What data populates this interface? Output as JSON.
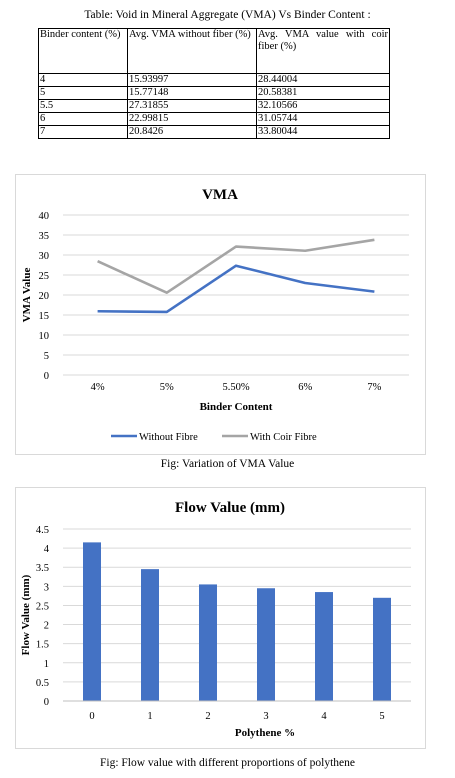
{
  "table": {
    "caption": "Table: Void in Mineral Aggregate (VMA) Vs Binder Content :",
    "headers": [
      "Binder content (%)",
      "Avg. VMA without fiber (%)",
      "Avg. VMA value with coir fiber (%)"
    ],
    "rows": [
      [
        "4",
        "15.93997",
        "28.44004"
      ],
      [
        "5",
        "15.77148",
        "20.58381"
      ],
      [
        "5.5",
        "27.31855",
        "32.10566"
      ],
      [
        "6",
        "22.99815",
        "31.05744"
      ],
      [
        "7",
        "20.8426",
        "33.80044"
      ]
    ]
  },
  "chart_data": [
    {
      "type": "line",
      "title": "VMA",
      "xlabel": "Binder Content",
      "ylabel": "VMA Value",
      "categories": [
        "4%",
        "5%",
        "5.50%",
        "6%",
        "7%"
      ],
      "ylim": [
        0,
        40
      ],
      "yticks": [
        "0",
        "5",
        "10",
        "15",
        "20",
        "25",
        "30",
        "35",
        "40"
      ],
      "grid": true,
      "legend_position": "bottom",
      "series": [
        {
          "name": "Without Fibre",
          "color": "#4472c4",
          "values": [
            15.94,
            15.77,
            27.32,
            23.0,
            20.84
          ]
        },
        {
          "name": "With Coir Fibre",
          "color": "#a5a5a5",
          "values": [
            28.44,
            20.58,
            32.11,
            31.06,
            33.8
          ]
        }
      ]
    },
    {
      "type": "bar",
      "title": "Flow Value (mm)",
      "xlabel": "Polythene %",
      "ylabel": "Flow Value (mm)",
      "categories": [
        "0",
        "1",
        "2",
        "3",
        "4",
        "5"
      ],
      "values": [
        4.15,
        3.45,
        3.05,
        2.95,
        2.85,
        2.7
      ],
      "ylim": [
        0,
        4.5
      ],
      "yticks": [
        "0",
        "0.5",
        "1",
        "1.5",
        "2",
        "2.5",
        "3",
        "3.5",
        "4",
        "4.5"
      ],
      "grid": true,
      "color": "#4472c4"
    }
  ],
  "captions": {
    "fig1": "Fig: Variation of VMA Value",
    "fig2": "Fig: Flow value with different proportions of polythene"
  }
}
